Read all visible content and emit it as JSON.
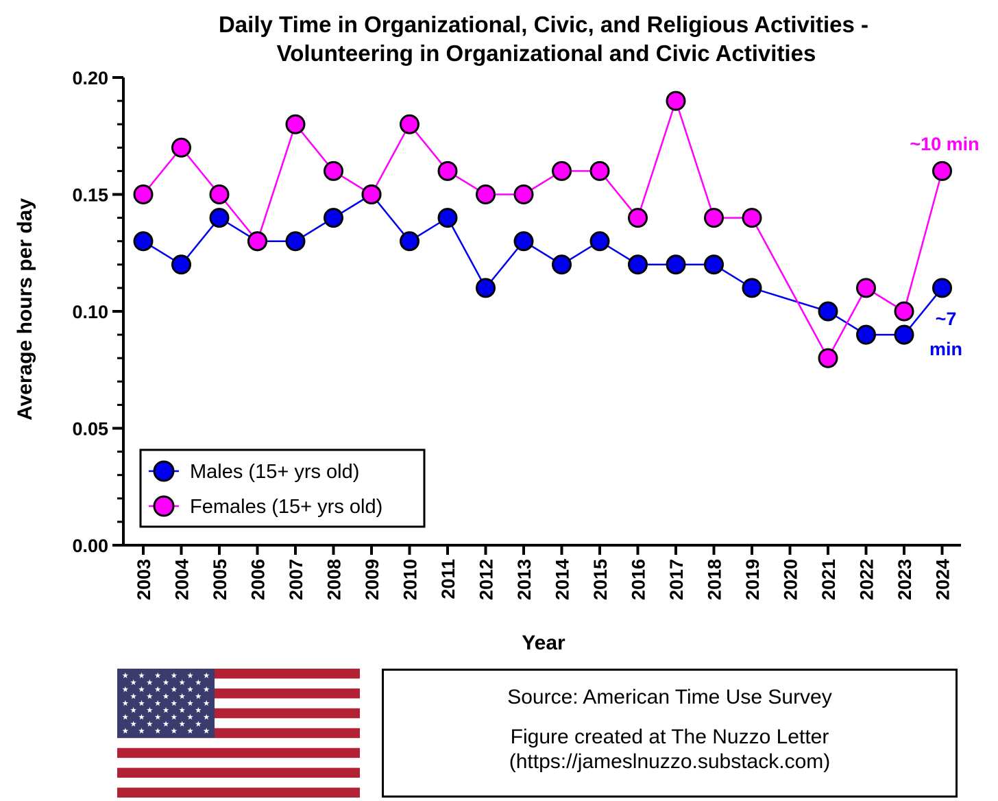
{
  "chart_data": {
    "type": "line",
    "title": [
      "Daily Time in Organizational, Civic, and Religious Activities -",
      "Volunteering in Organizational and Civic Activities"
    ],
    "xlabel": "Year",
    "ylabel": "Average hours per day",
    "categories": [
      "2003",
      "2004",
      "2005",
      "2006",
      "2007",
      "2008",
      "2009",
      "2010",
      "2011",
      "2012",
      "2013",
      "2014",
      "2015",
      "2016",
      "2017",
      "2018",
      "2019",
      "2020",
      "2021",
      "2022",
      "2023",
      "2024"
    ],
    "ylim": [
      0,
      0.2
    ],
    "yticks": [
      "0.00",
      "0.05",
      "0.10",
      "0.15",
      "0.20"
    ],
    "series": [
      {
        "name": "Males (15+ yrs old)",
        "color": "#0000ee",
        "values": [
          0.13,
          0.12,
          0.14,
          0.13,
          0.13,
          0.14,
          0.15,
          0.13,
          0.14,
          0.11,
          0.13,
          0.12,
          0.13,
          0.12,
          0.12,
          0.12,
          0.11,
          null,
          0.1,
          0.09,
          0.09,
          0.11
        ]
      },
      {
        "name": "Females (15+ yrs old)",
        "color": "#ff00ff",
        "values": [
          0.15,
          0.17,
          0.15,
          0.13,
          0.18,
          0.16,
          0.15,
          0.18,
          0.16,
          0.15,
          0.15,
          0.16,
          0.16,
          0.14,
          0.19,
          0.14,
          0.14,
          null,
          0.08,
          0.11,
          0.1,
          0.16
        ]
      }
    ],
    "annotations": [
      {
        "text": "~10 min",
        "series": "Females (15+ yrs old)",
        "color": "#ff00ff"
      },
      {
        "text": "~7",
        "series": "Males (15+ yrs old)",
        "color": "#0000ee"
      },
      {
        "text": "min",
        "series": "Males (15+ yrs old)",
        "color": "#0000ee"
      }
    ],
    "legend": "bottom-left"
  },
  "footer": {
    "source": "Source: American Time Use Survey",
    "credit_line1": "Figure created at The Nuzzo Letter",
    "credit_line2": "(https://jameslnuzzo.substack.com)"
  },
  "flag": {
    "name": "us-flag",
    "red": "#b22234",
    "blue": "#3c3b6e",
    "white": "#ffffff"
  }
}
